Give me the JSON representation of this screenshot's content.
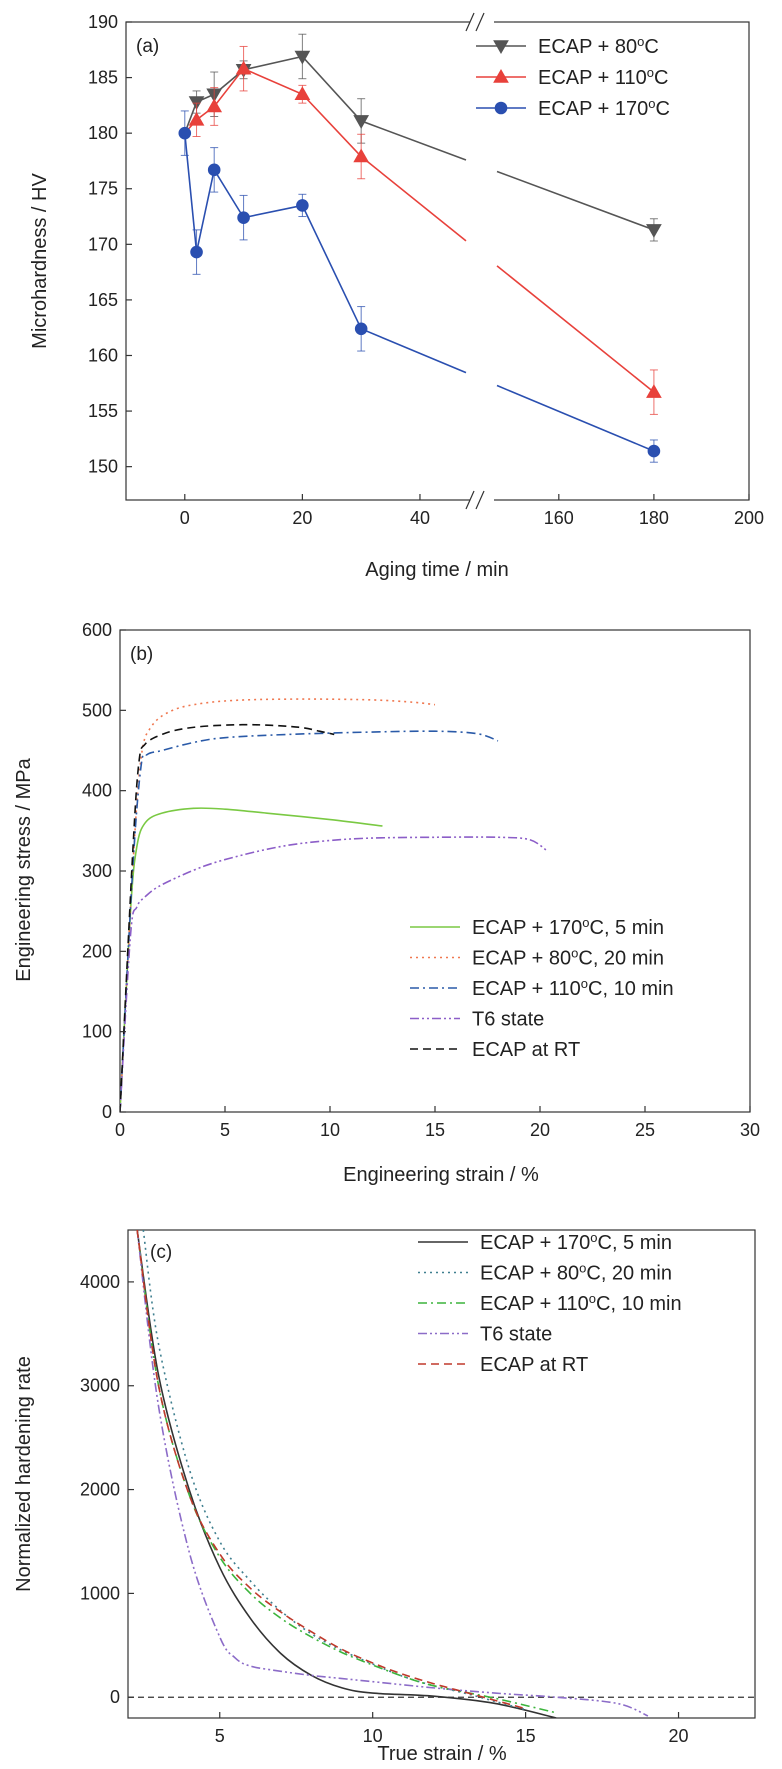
{
  "chart_data": [
    {
      "type": "line",
      "panel_label": "(a)",
      "xlabel": "Aging time / min",
      "ylabel": "Microhardness / HV",
      "axis_break": true,
      "x_segments": [
        {
          "range": [
            -10,
            48
          ],
          "ticks": [
            0,
            20,
            40
          ]
        },
        {
          "range": [
            147,
            200
          ],
          "ticks": [
            160,
            180,
            200
          ]
        }
      ],
      "ylim": [
        147,
        190
      ],
      "yticks": [
        150,
        155,
        160,
        165,
        170,
        175,
        180,
        185,
        190
      ],
      "legend_position": "top-right",
      "series": [
        {
          "name": "ECAP + 80°C",
          "color": "#555555",
          "marker": "triangle-down",
          "points": [
            {
              "x": 2,
              "y": 182.8,
              "err": 1.0
            },
            {
              "x": 5,
              "y": 183.5,
              "err": 2.0
            },
            {
              "x": 10,
              "y": 185.7,
              "err": 0.8
            },
            {
              "x": 20,
              "y": 186.9,
              "err": 2.0
            },
            {
              "x": 30,
              "y": 181.1,
              "err": 2.0
            },
            {
              "x": 180,
              "y": 171.3,
              "err": 1.0
            }
          ],
          "pre_point": {
            "x": 0,
            "y": 180.0
          }
        },
        {
          "name": "ECAP + 110°C",
          "color": "#e8413b",
          "marker": "triangle-up",
          "points": [
            {
              "x": 2,
              "y": 181.2,
              "err": 1.5
            },
            {
              "x": 5,
              "y": 182.4,
              "err": 1.7
            },
            {
              "x": 10,
              "y": 185.8,
              "err": 2.0
            },
            {
              "x": 20,
              "y": 183.5,
              "err": 0.8
            },
            {
              "x": 30,
              "y": 177.9,
              "err": 2.0
            },
            {
              "x": 180,
              "y": 156.7,
              "err": 2.0
            }
          ],
          "pre_point": {
            "x": 0,
            "y": 180.0
          }
        },
        {
          "name": "ECAP + 170°C",
          "color": "#2a4fb0",
          "marker": "circle",
          "points": [
            {
              "x": 0,
              "y": 180.0,
              "err": 2.0
            },
            {
              "x": 2,
              "y": 169.3,
              "err": 2.0
            },
            {
              "x": 5,
              "y": 176.7,
              "err": 2.0
            },
            {
              "x": 10,
              "y": 172.4,
              "err": 2.0
            },
            {
              "x": 20,
              "y": 173.5,
              "err": 1.0
            },
            {
              "x": 30,
              "y": 162.4,
              "err": 2.0
            },
            {
              "x": 180,
              "y": 151.4,
              "err": 1.0
            }
          ]
        }
      ]
    },
    {
      "type": "line",
      "panel_label": "(b)",
      "xlabel": "Engineering strain / %",
      "ylabel": "Engineering stress / MPa",
      "xlim": [
        0,
        30
      ],
      "xticks": [
        0,
        5,
        10,
        15,
        20,
        25,
        30
      ],
      "ylim": [
        0,
        600
      ],
      "yticks": [
        0,
        100,
        200,
        300,
        400,
        500,
        600
      ],
      "legend_position": "bottom-right",
      "series": [
        {
          "name": "ECAP + 170°C, 5 min",
          "color": "#7ac943",
          "dash": "solid",
          "x": [
            0,
            0.5,
            0.8,
            1.2,
            2.0,
            3.5,
            5,
            7,
            10,
            12.5
          ],
          "y": [
            0,
            250,
            330,
            360,
            372,
            378,
            377,
            372,
            364,
            356
          ]
        },
        {
          "name": "ECAP + 80°C, 20 min",
          "color": "#f07850",
          "dash": "dot",
          "x": [
            0,
            0.6,
            1.0,
            1.5,
            2.5,
            4,
            6,
            9,
            12,
            14,
            15
          ],
          "y": [
            0,
            300,
            440,
            480,
            500,
            509,
            513,
            514,
            513,
            510,
            507
          ]
        },
        {
          "name": "ECAP + 110°C, 10 min",
          "color": "#2a5aa8",
          "dash": "dashdot",
          "x": [
            0,
            0.6,
            1.0,
            1.3,
            2,
            3.5,
            5,
            8,
            12,
            15,
            17,
            18
          ],
          "y": [
            0,
            300,
            430,
            445,
            450,
            460,
            466,
            470,
            473,
            474,
            471,
            462
          ]
        },
        {
          "name": "T6 state",
          "color": "#8c5ec8",
          "dash": "dashdotdot",
          "x": [
            0,
            0.5,
            0.8,
            1.2,
            2,
            4,
            6,
            8,
            10,
            12,
            15,
            18,
            19.5,
            20.3
          ],
          "y": [
            0,
            220,
            255,
            268,
            283,
            306,
            321,
            332,
            338,
            341,
            342,
            342,
            339,
            326
          ]
        },
        {
          "name": "ECAP at RT",
          "color": "#111111",
          "dash": "dash",
          "x": [
            0,
            0.6,
            0.9,
            1.2,
            2,
            3,
            4.5,
            6.5,
            8.5,
            9.5,
            10.2
          ],
          "y": [
            0,
            320,
            435,
            458,
            470,
            477,
            481,
            482,
            479,
            474,
            470
          ]
        }
      ]
    },
    {
      "type": "line",
      "panel_label": "(c)",
      "xlabel": "True strain / %",
      "ylabel": "Normalized hardening rate",
      "xlim": [
        2,
        22.5
      ],
      "xticks": [
        5,
        10,
        15,
        20
      ],
      "ylim": [
        -200,
        4500
      ],
      "yticks": [
        0,
        1000,
        2000,
        3000,
        4000
      ],
      "reference_line": {
        "y": 0,
        "dash": "dash",
        "color": "#333333"
      },
      "legend_position": "top-right",
      "series": [
        {
          "name": "ECAP + 170°C, 5 min",
          "color": "#333333",
          "dash": "solid",
          "x": [
            2.3,
            3,
            4,
            5,
            6,
            7,
            8,
            9,
            10,
            12,
            14,
            16
          ],
          "y": [
            4500,
            3100,
            2000,
            1250,
            760,
            420,
            210,
            90,
            40,
            10,
            -60,
            -200
          ]
        },
        {
          "name": "ECAP + 80°C, 20 min",
          "color": "#3f7f8f",
          "dash": "dot",
          "x": [
            2.5,
            3,
            4,
            5,
            6,
            7,
            8,
            9,
            10,
            11,
            12,
            13,
            14,
            15
          ],
          "y": [
            4500,
            3400,
            2200,
            1500,
            1120,
            830,
            610,
            450,
            320,
            200,
            110,
            40,
            -40,
            -120
          ]
        },
        {
          "name": "ECAP + 110°C, 10 min",
          "color": "#3cb43c",
          "dash": "dashdot",
          "x": [
            2.3,
            3,
            4,
            5,
            6,
            7,
            8,
            9,
            10,
            11,
            12,
            14,
            16
          ],
          "y": [
            4500,
            3000,
            1950,
            1350,
            1000,
            760,
            580,
            430,
            310,
            200,
            110,
            -10,
            -150
          ]
        },
        {
          "name": "T6 state",
          "color": "#8c6cc8",
          "dash": "dashdotdot",
          "x": [
            2.3,
            3,
            4,
            5,
            5.5,
            6,
            7,
            8,
            9,
            10,
            12,
            14,
            16,
            18,
            19
          ],
          "y": [
            4500,
            2800,
            1400,
            580,
            380,
            300,
            250,
            210,
            180,
            150,
            90,
            40,
            0,
            -60,
            -180
          ]
        },
        {
          "name": "ECAP at RT",
          "color": "#c0392b",
          "dash": "dash",
          "x": [
            2.3,
            3,
            4,
            5,
            6,
            7,
            8,
            9,
            10,
            11,
            12,
            13,
            14,
            15
          ],
          "y": [
            4500,
            3000,
            1950,
            1380,
            1050,
            820,
            630,
            460,
            330,
            220,
            130,
            50,
            -30,
            -110
          ]
        }
      ]
    }
  ]
}
